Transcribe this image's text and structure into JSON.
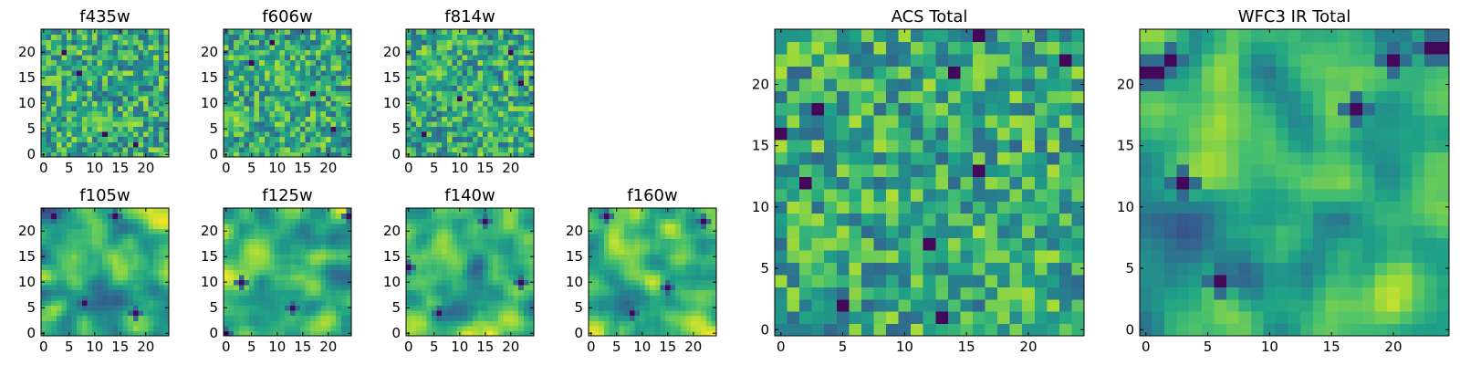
{
  "chart_data": {
    "type": "heatmap",
    "palette": [
      "#440154",
      "#46327e",
      "#365c8d",
      "#277f8e",
      "#1fa187",
      "#4ac16d",
      "#a0da39",
      "#fde725"
    ],
    "panels": [
      {
        "title": "f435w",
        "grid_size": 25,
        "xlim": [
          -0.5,
          24.5
        ],
        "ylim": [
          -0.5,
          24.5
        ],
        "xticks": [
          0,
          5,
          10,
          15,
          20
        ],
        "yticks": [
          0,
          5,
          10,
          15,
          20
        ],
        "texture": "speckled",
        "cmap": "viridis",
        "hot_spots": [
          {
            "center": [
              10,
              7
            ],
            "radius": 4,
            "level": 0.85
          }
        ],
        "dark_spots": [
          [
            4,
            20
          ],
          [
            12,
            4
          ],
          [
            18,
            2
          ],
          [
            7,
            16
          ]
        ]
      },
      {
        "title": "f606w",
        "grid_size": 25,
        "xlim": [
          -0.5,
          24.5
        ],
        "ylim": [
          -0.5,
          24.5
        ],
        "xticks": [
          0,
          5,
          10,
          15,
          20
        ],
        "yticks": [
          0,
          5,
          10,
          15,
          20
        ],
        "texture": "speckled",
        "cmap": "viridis",
        "hot_spots": [
          {
            "center": [
              2,
              7
            ],
            "radius": 4,
            "level": 0.9
          },
          {
            "center": [
              12,
              15
            ],
            "radius": 4,
            "level": 0.8
          }
        ],
        "dark_spots": [
          [
            9,
            22
          ],
          [
            17,
            12
          ],
          [
            21,
            5
          ],
          [
            5,
            18
          ]
        ]
      },
      {
        "title": "f814w",
        "grid_size": 25,
        "xlim": [
          -0.5,
          24.5
        ],
        "ylim": [
          -0.5,
          24.5
        ],
        "xticks": [
          0,
          5,
          10,
          15,
          20
        ],
        "yticks": [
          0,
          5,
          10,
          15,
          20
        ],
        "texture": "speckled",
        "cmap": "viridis",
        "hot_spots": [
          {
            "center": [
              5,
              16
            ],
            "radius": 4,
            "level": 0.85
          },
          {
            "center": [
              15,
              7
            ],
            "radius": 4,
            "level": 0.8
          }
        ],
        "dark_spots": [
          [
            20,
            20
          ],
          [
            3,
            4
          ],
          [
            10,
            11
          ],
          [
            22,
            14
          ]
        ]
      },
      {
        "title": "f105w",
        "grid_size": 25,
        "xlim": [
          -0.5,
          24.5
        ],
        "ylim": [
          -0.5,
          24.5
        ],
        "xticks": [
          0,
          5,
          10,
          15,
          20
        ],
        "yticks": [
          0,
          5,
          10,
          15,
          20
        ],
        "texture": "smooth",
        "cmap": "viridis",
        "hot_spots": [
          {
            "center": [
              6,
              15
            ],
            "radius": 6,
            "level": 0.9
          },
          {
            "center": [
              18,
              1
            ],
            "radius": 4,
            "level": 0.95
          }
        ],
        "dark_spots": [
          [
            2,
            23
          ],
          [
            14,
            23
          ],
          [
            18,
            4
          ],
          [
            8,
            6
          ]
        ]
      },
      {
        "title": "f125w",
        "grid_size": 25,
        "xlim": [
          -0.5,
          24.5
        ],
        "ylim": [
          -0.5,
          24.5
        ],
        "xticks": [
          0,
          5,
          10,
          15,
          20
        ],
        "yticks": [
          0,
          5,
          10,
          15,
          20
        ],
        "texture": "smooth",
        "cmap": "viridis",
        "hot_spots": [
          {
            "center": [
              6,
              16
            ],
            "radius": 6,
            "level": 0.95
          },
          {
            "center": [
              19,
              2
            ],
            "radius": 4,
            "level": 0.95
          }
        ],
        "dark_spots": [
          [
            0,
            0
          ],
          [
            24,
            23
          ],
          [
            13,
            5
          ],
          [
            3,
            10
          ]
        ]
      },
      {
        "title": "f140w",
        "grid_size": 25,
        "xlim": [
          -0.5,
          24.5
        ],
        "ylim": [
          -0.5,
          24.5
        ],
        "xticks": [
          0,
          5,
          10,
          15,
          20
        ],
        "yticks": [
          0,
          5,
          10,
          15,
          20
        ],
        "texture": "smooth",
        "cmap": "viridis",
        "hot_spots": [
          {
            "center": [
              7,
              16
            ],
            "radius": 6,
            "level": 0.95
          },
          {
            "center": [
              19,
              3
            ],
            "radius": 4,
            "level": 0.95
          }
        ],
        "dark_spots": [
          [
            0,
            13
          ],
          [
            6,
            4
          ],
          [
            15,
            22
          ],
          [
            22,
            10
          ]
        ]
      },
      {
        "title": "f160w",
        "grid_size": 25,
        "xlim": [
          -0.5,
          24.5
        ],
        "ylim": [
          -0.5,
          24.5
        ],
        "xticks": [
          0,
          5,
          10,
          15,
          20
        ],
        "yticks": [
          0,
          5,
          10,
          15,
          20
        ],
        "texture": "smooth",
        "cmap": "viridis",
        "hot_spots": [
          {
            "center": [
              6,
              16
            ],
            "radius": 6,
            "level": 0.95
          },
          {
            "center": [
              20,
              2
            ],
            "radius": 4,
            "level": 0.95
          }
        ],
        "dark_spots": [
          [
            22,
            22
          ],
          [
            8,
            4
          ],
          [
            15,
            9
          ],
          [
            3,
            23
          ]
        ]
      },
      {
        "title": "ACS Total",
        "grid_size": 25,
        "xlim": [
          -0.5,
          24.5
        ],
        "ylim": [
          -0.5,
          24.5
        ],
        "xticks": [
          0,
          5,
          10,
          15,
          20
        ],
        "yticks": [
          0,
          5,
          10,
          15,
          20
        ],
        "texture": "speckled",
        "cmap": "viridis",
        "hot_spots": [
          {
            "center": [
              3,
              7
            ],
            "radius": 3,
            "level": 0.9
          },
          {
            "center": [
              9,
              10
            ],
            "radius": 2,
            "level": 0.9
          },
          {
            "center": [
              20,
              2
            ],
            "radius": 2,
            "level": 0.85
          }
        ],
        "dark_spots": [
          [
            0,
            16
          ],
          [
            16,
            13
          ],
          [
            13,
            1
          ],
          [
            5,
            2
          ],
          [
            16,
            24
          ],
          [
            14,
            21
          ],
          [
            12,
            7
          ],
          [
            2,
            12
          ],
          [
            23,
            22
          ],
          [
            3,
            18
          ]
        ]
      },
      {
        "title": "WFC3 IR Total",
        "grid_size": 25,
        "xlim": [
          -0.5,
          24.5
        ],
        "ylim": [
          -0.5,
          24.5
        ],
        "xticks": [
          0,
          5,
          10,
          15,
          20
        ],
        "yticks": [
          0,
          5,
          10,
          15,
          20
        ],
        "texture": "smooth",
        "cmap": "viridis",
        "hot_spots": [
          {
            "center": [
              6,
              17
            ],
            "radius": 6,
            "level": 0.95
          },
          {
            "center": [
              20,
              2
            ],
            "radius": 4,
            "level": 1.0
          },
          {
            "center": [
              16,
              12
            ],
            "radius": 3,
            "level": 0.85
          }
        ],
        "dark_spots": [
          [
            0,
            21
          ],
          [
            1,
            21
          ],
          [
            2,
            22
          ],
          [
            6,
            4
          ],
          [
            17,
            18
          ],
          [
            23,
            23
          ],
          [
            24,
            23
          ],
          [
            3,
            12
          ],
          [
            20,
            22
          ]
        ]
      }
    ]
  }
}
